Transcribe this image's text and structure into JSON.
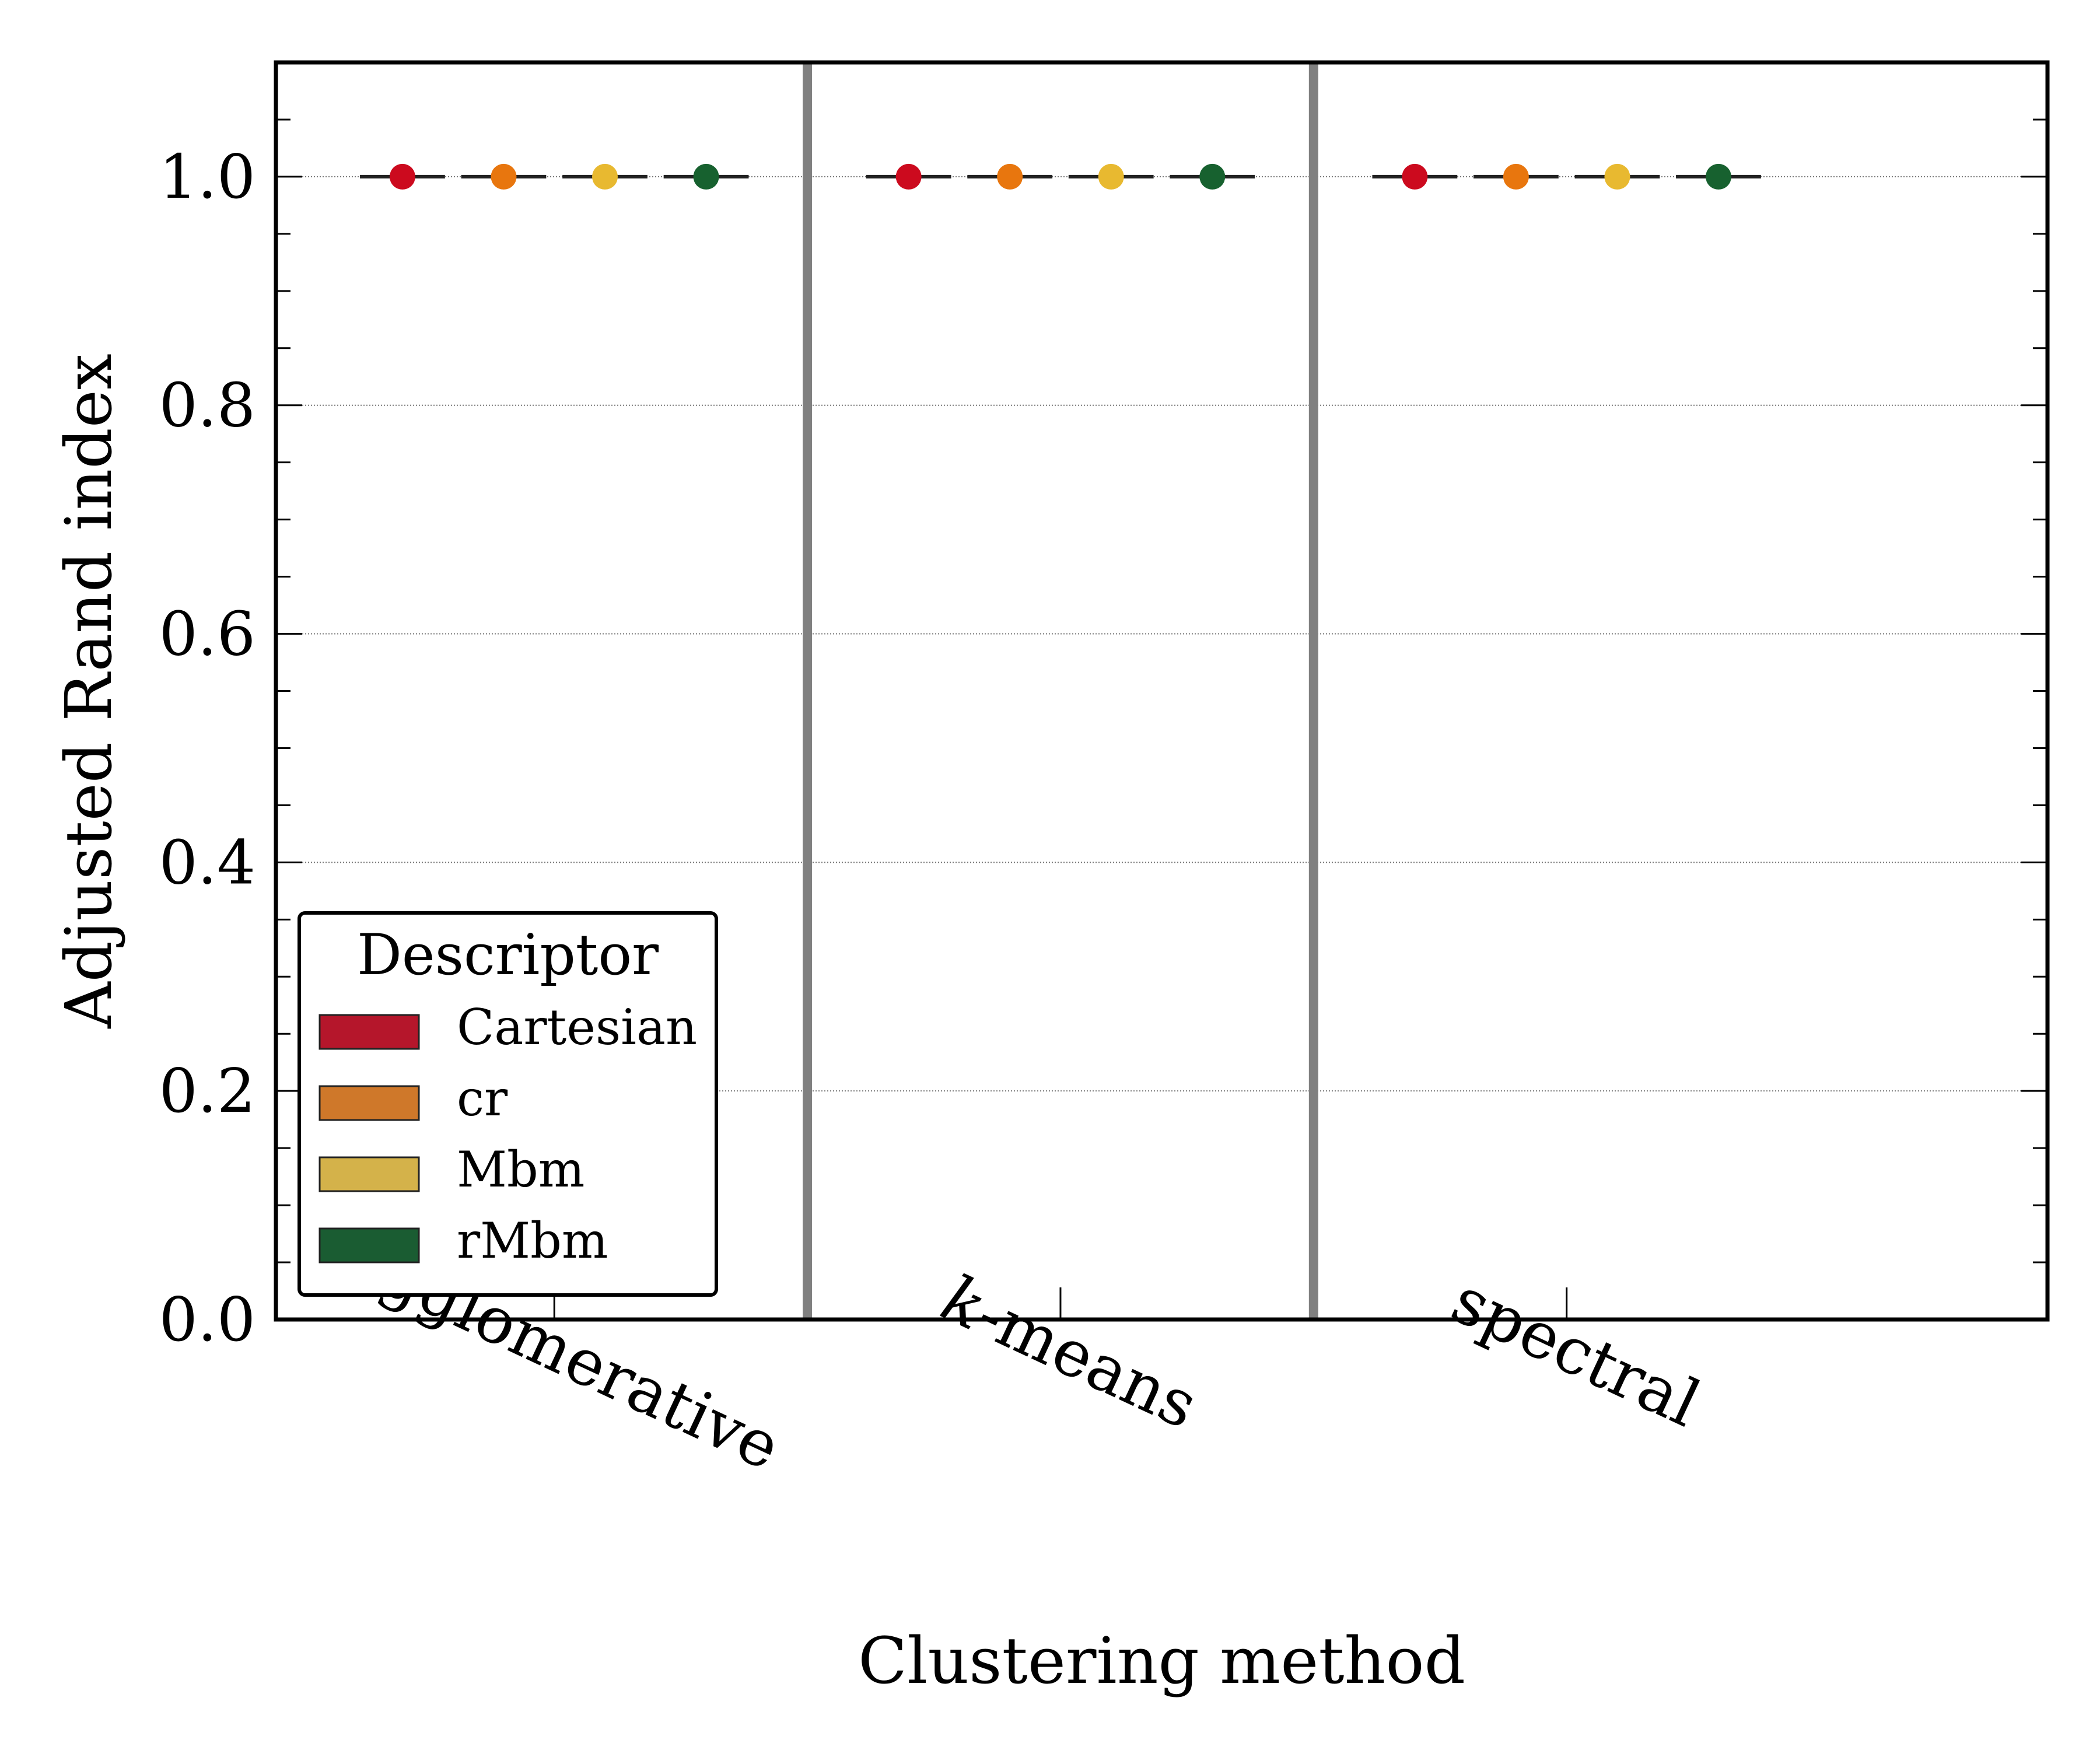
{
  "chart_data": {
    "type": "box",
    "xlabel": "Clustering method",
    "ylabel": "Adjusted Rand index",
    "ylim": [
      0.0,
      1.1
    ],
    "yticks": [
      0.0,
      0.2,
      0.4,
      0.6,
      0.8,
      1.0
    ],
    "ytick_labels": [
      "0.0",
      "0.2",
      "0.4",
      "0.6",
      "0.8",
      "1.0"
    ],
    "grid": "horizontal dotted",
    "categories": [
      {
        "label": "agglomerative",
        "prefix": "",
        "italic": ""
      },
      {
        "label": "-means",
        "prefix": "",
        "italic": "k"
      },
      {
        "label": "spectral",
        "prefix": "",
        "italic": ""
      }
    ],
    "legend": {
      "title": "Descriptor",
      "placement": "lower-left"
    },
    "series": [
      {
        "name": "Cartesian",
        "color": "#b5162b",
        "marker_color": "#cc0a1e",
        "values": [
          1.0,
          1.0,
          1.0
        ]
      },
      {
        "name": "cr",
        "color": "#cf782a",
        "marker_color": "#e8760e",
        "values": [
          1.0,
          1.0,
          1.0
        ]
      },
      {
        "name": "Mbm",
        "color": "#d4b24a",
        "marker_color": "#e8b930",
        "values": [
          1.0,
          1.0,
          1.0
        ]
      },
      {
        "name": "rMbm",
        "color": "#1a5c32",
        "marker_color": "#17612f",
        "values": [
          1.0,
          1.0,
          1.0
        ]
      }
    ]
  }
}
